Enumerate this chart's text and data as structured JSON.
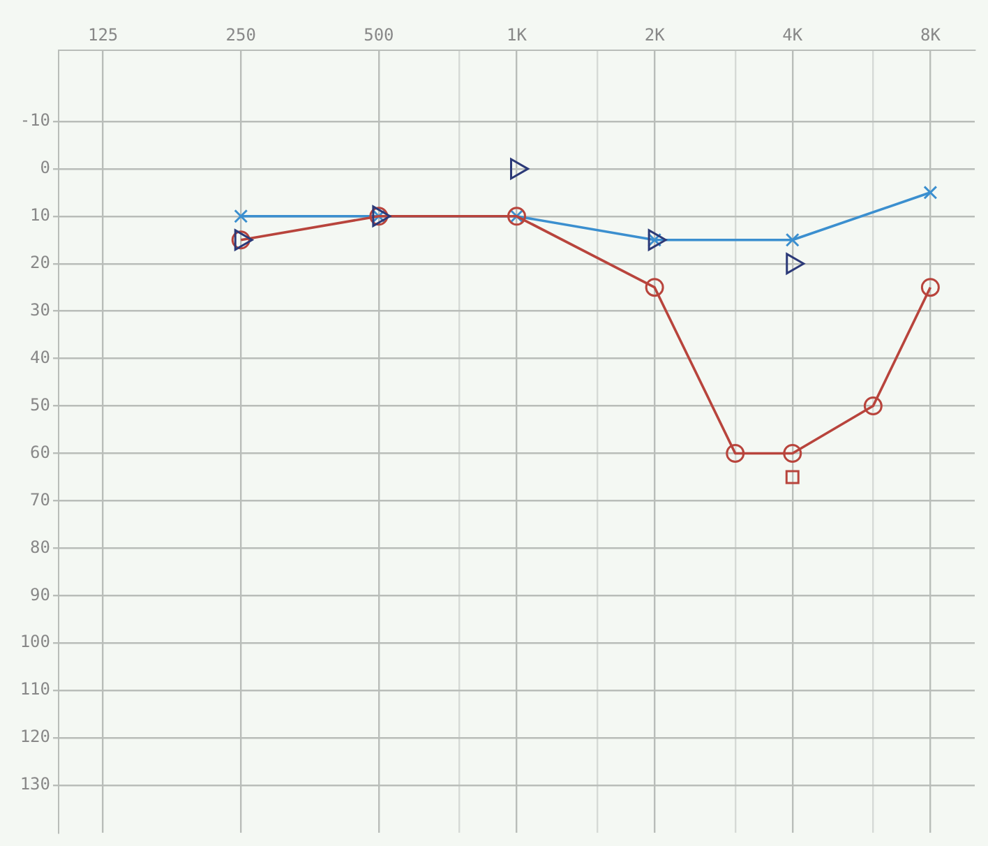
{
  "chart_data": {
    "type": "line",
    "xlim": [
      100,
      10000
    ],
    "ylim": [
      140,
      -25
    ],
    "xticks": [
      {
        "value": 125,
        "label": "125"
      },
      {
        "value": 250,
        "label": "250"
      },
      {
        "value": 500,
        "label": "500"
      },
      {
        "value": 750,
        "label": null
      },
      {
        "value": 1000,
        "label": "1K"
      },
      {
        "value": 1500,
        "label": null
      },
      {
        "value": 2000,
        "label": "2K"
      },
      {
        "value": 3000,
        "label": null
      },
      {
        "value": 4000,
        "label": "4K"
      },
      {
        "value": 6000,
        "label": null
      },
      {
        "value": 8000,
        "label": "8K"
      }
    ],
    "yticks": [
      -10,
      0,
      10,
      20,
      30,
      40,
      50,
      60,
      70,
      80,
      90,
      100,
      110,
      120,
      130
    ],
    "log": "x",
    "grid": true,
    "legend": false,
    "series": [
      {
        "type": "line",
        "color": "#b8443c",
        "marker": "circle",
        "line_style": "solid",
        "x": [
          250,
          500,
          1000,
          2000,
          3000,
          4000,
          6000,
          8000
        ],
        "values": [
          15,
          10,
          10,
          25,
          60,
          60,
          50,
          25
        ]
      },
      {
        "type": "line",
        "color": "#3b8fcf",
        "marker": "cross",
        "line_style": "solid",
        "x": [
          250,
          500,
          1000,
          2000,
          4000,
          8000
        ],
        "values": [
          10,
          10,
          10,
          15,
          15,
          5
        ]
      },
      {
        "type": "scatter",
        "color": "#2c3a78",
        "marker": "triangle",
        "x": [
          250,
          500,
          1000,
          2000,
          4000
        ],
        "values": [
          15,
          10,
          0,
          15,
          20
        ]
      },
      {
        "type": "scatter",
        "color": "#b8443c",
        "marker": "square",
        "x": [
          4000
        ],
        "values": [
          65
        ]
      }
    ]
  }
}
